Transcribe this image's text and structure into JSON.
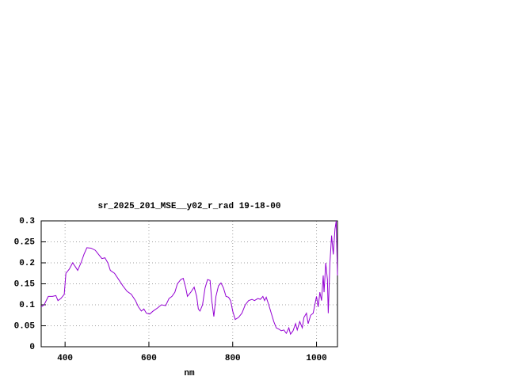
{
  "chart_data": {
    "type": "line",
    "title": "sr_2025_201_MSE__y02_r_rad 19-18-00",
    "x_label": "nm",
    "xlim": [
      343,
      1050
    ],
    "ylim": [
      0,
      0.3
    ],
    "xticks": [
      400,
      600,
      800,
      1000
    ],
    "yticks": [
      0,
      0.05,
      0.1,
      0.15,
      0.2,
      0.25,
      0.3
    ],
    "grid": true,
    "series": [
      {
        "color": "#9400d3",
        "x": [
          343,
          350,
          360,
          370,
          378,
          383,
          390,
          398,
          402,
          410,
          418,
          425,
          430,
          438,
          445,
          452,
          462,
          472,
          480,
          488,
          495,
          502,
          508,
          518,
          528,
          538,
          548,
          558,
          568,
          575,
          582,
          588,
          594,
          602,
          610,
          620,
          630,
          640,
          648,
          655,
          662,
          668,
          676,
          682,
          688,
          692,
          700,
          708,
          714,
          718,
          722,
          728,
          734,
          740,
          746,
          750,
          755,
          760,
          766,
          772,
          778,
          784,
          790,
          795,
          800,
          806,
          814,
          822,
          830,
          838,
          846,
          852,
          860,
          866,
          872,
          876,
          880,
          886,
          892,
          898,
          904,
          910,
          916,
          922,
          928,
          934,
          938,
          944,
          950,
          954,
          960,
          966,
          970,
          976,
          980,
          986,
          992,
          996,
          1000,
          1004,
          1008,
          1012,
          1016,
          1018,
          1022,
          1026,
          1028,
          1032,
          1036,
          1040,
          1044,
          1047,
          1050
        ],
        "values": [
          0.095,
          0.1,
          0.12,
          0.12,
          0.122,
          0.11,
          0.115,
          0.125,
          0.175,
          0.185,
          0.2,
          0.19,
          0.182,
          0.2,
          0.22,
          0.236,
          0.235,
          0.23,
          0.22,
          0.21,
          0.212,
          0.2,
          0.182,
          0.175,
          0.16,
          0.145,
          0.132,
          0.125,
          0.11,
          0.095,
          0.085,
          0.09,
          0.08,
          0.078,
          0.085,
          0.092,
          0.1,
          0.098,
          0.115,
          0.12,
          0.13,
          0.15,
          0.16,
          0.163,
          0.14,
          0.12,
          0.13,
          0.142,
          0.12,
          0.09,
          0.085,
          0.1,
          0.14,
          0.16,
          0.158,
          0.11,
          0.072,
          0.12,
          0.145,
          0.152,
          0.14,
          0.12,
          0.118,
          0.11,
          0.085,
          0.065,
          0.07,
          0.08,
          0.1,
          0.11,
          0.113,
          0.11,
          0.115,
          0.113,
          0.12,
          0.11,
          0.118,
          0.1,
          0.08,
          0.06,
          0.045,
          0.042,
          0.038,
          0.04,
          0.032,
          0.045,
          0.03,
          0.038,
          0.055,
          0.04,
          0.06,
          0.045,
          0.07,
          0.08,
          0.055,
          0.075,
          0.08,
          0.1,
          0.12,
          0.095,
          0.13,
          0.11,
          0.17,
          0.13,
          0.2,
          0.16,
          0.08,
          0.2,
          0.265,
          0.22,
          0.28,
          0.3,
          0.17
        ]
      }
    ]
  }
}
